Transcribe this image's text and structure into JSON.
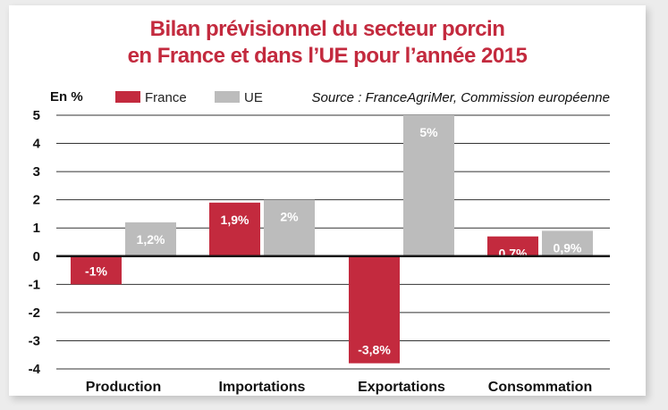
{
  "chart_data": {
    "type": "bar",
    "title_lines": [
      "Bilan prévisionnel du secteur porcin",
      "en France et dans l’UE pour l’année 2015"
    ],
    "unit_label": "En %",
    "source": "Source : FranceAgriMer, Commission européenne",
    "categories": [
      "Production",
      "Importations",
      "Exportations",
      "Consommation"
    ],
    "series": [
      {
        "name": "France",
        "color": "#c32a3e",
        "values": [
          -1,
          1.9,
          -3.8,
          0.7
        ],
        "labels": [
          "-1%",
          "1,9%",
          "-3,8%",
          "0,7%"
        ]
      },
      {
        "name": "UE",
        "color": "#bcbcbc",
        "values": [
          1.2,
          2,
          5,
          0.9
        ],
        "labels": [
          "1,2%",
          "2%",
          "5%",
          "0,9%"
        ]
      }
    ],
    "ylim": [
      -4,
      5
    ],
    "yticks": [
      "5",
      "4",
      "3",
      "2",
      "1",
      "0",
      "-1",
      "-2",
      "-3",
      "-4"
    ],
    "grid": true,
    "legend_position": "top-left"
  }
}
